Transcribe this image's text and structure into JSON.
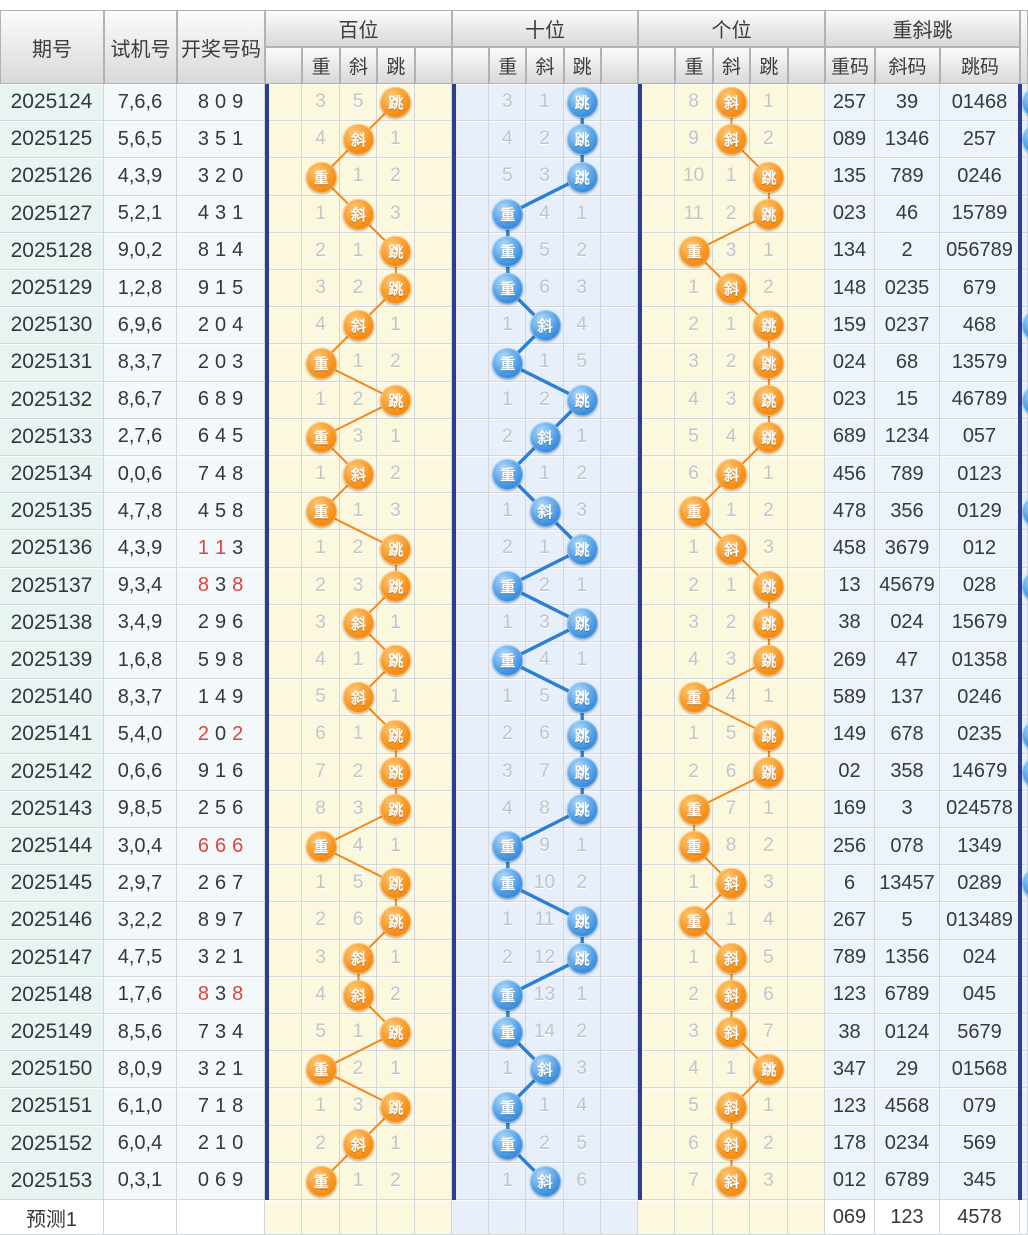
{
  "chart_data": {
    "type": "table",
    "header": {
      "period": "期号",
      "test": "试机号",
      "result": "开奖号码",
      "bai": "百位",
      "shi": "十位",
      "ge": "个位",
      "zxt": "重斜跳",
      "sub": [
        "重",
        "斜",
        "跳"
      ],
      "codes": [
        "重码",
        "斜码",
        "跳码"
      ]
    },
    "chars": [
      "重",
      "斜",
      "跳"
    ],
    "colors": {
      "orange": "#f5871d",
      "blue": "#2b80d5",
      "navy": "#2e3e8f",
      "red": "#e0433c",
      "gray_num": "#c2c4c8"
    },
    "rows": [
      {
        "p": "2025124",
        "t": "7,6,6",
        "r": "809",
        "red": [],
        "bai": [
          2,
          "3",
          "5",
          ""
        ],
        "shi": [
          2,
          "3",
          "1",
          ""
        ],
        "ge": [
          1,
          "8",
          "",
          "1"
        ],
        "codes": [
          "257",
          "39",
          "01468"
        ]
      },
      {
        "p": "2025125",
        "t": "5,6,5",
        "r": "351",
        "red": [],
        "bai": [
          1,
          "4",
          "",
          "1"
        ],
        "shi": [
          2,
          "4",
          "2",
          ""
        ],
        "ge": [
          1,
          "9",
          "",
          "2"
        ],
        "codes": [
          "089",
          "1346",
          "257"
        ]
      },
      {
        "p": "2025126",
        "t": "4,3,9",
        "r": "320",
        "red": [],
        "bai": [
          0,
          "",
          "1",
          "2"
        ],
        "shi": [
          2,
          "5",
          "3",
          ""
        ],
        "ge": [
          2,
          "10",
          "1",
          ""
        ],
        "codes": [
          "135",
          "789",
          "0246"
        ]
      },
      {
        "p": "2025127",
        "t": "5,2,1",
        "r": "431",
        "red": [],
        "bai": [
          1,
          "1",
          "",
          "3"
        ],
        "shi": [
          0,
          "",
          "4",
          "1"
        ],
        "ge": [
          2,
          "11",
          "2",
          ""
        ],
        "codes": [
          "023",
          "46",
          "15789"
        ]
      },
      {
        "p": "2025128",
        "t": "9,0,2",
        "r": "814",
        "red": [],
        "bai": [
          2,
          "2",
          "1",
          ""
        ],
        "shi": [
          0,
          "",
          "5",
          "2"
        ],
        "ge": [
          0,
          "",
          "3",
          "1"
        ],
        "codes": [
          "134",
          "2",
          "056789"
        ]
      },
      {
        "p": "2025129",
        "t": "1,2,8",
        "r": "915",
        "red": [],
        "bai": [
          2,
          "3",
          "2",
          ""
        ],
        "shi": [
          0,
          "",
          "6",
          "3"
        ],
        "ge": [
          1,
          "1",
          "",
          "2"
        ],
        "codes": [
          "148",
          "0235",
          "679"
        ]
      },
      {
        "p": "2025130",
        "t": "6,9,6",
        "r": "204",
        "red": [],
        "bai": [
          1,
          "4",
          "",
          "1"
        ],
        "shi": [
          1,
          "1",
          "",
          "4"
        ],
        "ge": [
          2,
          "2",
          "1",
          ""
        ],
        "codes": [
          "159",
          "0237",
          "468"
        ]
      },
      {
        "p": "2025131",
        "t": "8,3,7",
        "r": "203",
        "red": [],
        "bai": [
          0,
          "",
          "1",
          "2"
        ],
        "shi": [
          0,
          "",
          "1",
          "5"
        ],
        "ge": [
          2,
          "3",
          "2",
          ""
        ],
        "codes": [
          "024",
          "68",
          "13579"
        ]
      },
      {
        "p": "2025132",
        "t": "8,6,7",
        "r": "689",
        "red": [],
        "bai": [
          2,
          "1",
          "2",
          ""
        ],
        "shi": [
          2,
          "1",
          "2",
          ""
        ],
        "ge": [
          2,
          "4",
          "3",
          ""
        ],
        "codes": [
          "023",
          "15",
          "46789"
        ]
      },
      {
        "p": "2025133",
        "t": "2,7,6",
        "r": "645",
        "red": [],
        "bai": [
          0,
          "",
          "3",
          "1"
        ],
        "shi": [
          1,
          "2",
          "",
          "1"
        ],
        "ge": [
          2,
          "5",
          "4",
          ""
        ],
        "codes": [
          "689",
          "1234",
          "057"
        ]
      },
      {
        "p": "2025134",
        "t": "0,0,6",
        "r": "748",
        "red": [],
        "bai": [
          1,
          "1",
          "",
          "2"
        ],
        "shi": [
          0,
          "",
          "1",
          "2"
        ],
        "ge": [
          1,
          "6",
          "",
          "1"
        ],
        "codes": [
          "456",
          "789",
          "0123"
        ]
      },
      {
        "p": "2025135",
        "t": "4,7,8",
        "r": "458",
        "red": [],
        "bai": [
          0,
          "",
          "1",
          "3"
        ],
        "shi": [
          1,
          "1",
          "",
          "3"
        ],
        "ge": [
          0,
          "",
          "1",
          "2"
        ],
        "codes": [
          "478",
          "356",
          "0129"
        ]
      },
      {
        "p": "2025136",
        "t": "4,3,9",
        "r": "113",
        "red": [
          0,
          1
        ],
        "bai": [
          2,
          "1",
          "2",
          ""
        ],
        "shi": [
          2,
          "2",
          "1",
          ""
        ],
        "ge": [
          1,
          "1",
          "",
          "3"
        ],
        "codes": [
          "458",
          "3679",
          "012"
        ]
      },
      {
        "p": "2025137",
        "t": "9,3,4",
        "r": "838",
        "red": [
          0,
          2
        ],
        "bai": [
          2,
          "2",
          "3",
          ""
        ],
        "shi": [
          0,
          "",
          "2",
          "1"
        ],
        "ge": [
          2,
          "2",
          "1",
          ""
        ],
        "codes": [
          "13",
          "45679",
          "028"
        ]
      },
      {
        "p": "2025138",
        "t": "3,4,9",
        "r": "296",
        "red": [],
        "bai": [
          1,
          "3",
          "",
          "1"
        ],
        "shi": [
          2,
          "1",
          "3",
          ""
        ],
        "ge": [
          2,
          "3",
          "2",
          ""
        ],
        "codes": [
          "38",
          "024",
          "15679"
        ]
      },
      {
        "p": "2025139",
        "t": "1,6,8",
        "r": "598",
        "red": [],
        "bai": [
          2,
          "4",
          "1",
          ""
        ],
        "shi": [
          0,
          "",
          "4",
          "1"
        ],
        "ge": [
          2,
          "4",
          "3",
          ""
        ],
        "codes": [
          "269",
          "47",
          "01358"
        ]
      },
      {
        "p": "2025140",
        "t": "8,3,7",
        "r": "149",
        "red": [],
        "bai": [
          1,
          "5",
          "",
          "1"
        ],
        "shi": [
          2,
          "1",
          "5",
          ""
        ],
        "ge": [
          0,
          "",
          "4",
          "1"
        ],
        "codes": [
          "589",
          "137",
          "0246"
        ]
      },
      {
        "p": "2025141",
        "t": "5,4,0",
        "r": "202",
        "red": [
          0,
          2
        ],
        "bai": [
          2,
          "6",
          "1",
          ""
        ],
        "shi": [
          2,
          "2",
          "6",
          ""
        ],
        "ge": [
          2,
          "1",
          "5",
          ""
        ],
        "codes": [
          "149",
          "678",
          "0235"
        ]
      },
      {
        "p": "2025142",
        "t": "0,6,6",
        "r": "916",
        "red": [],
        "bai": [
          2,
          "7",
          "2",
          ""
        ],
        "shi": [
          2,
          "3",
          "7",
          ""
        ],
        "ge": [
          2,
          "2",
          "6",
          ""
        ],
        "codes": [
          "02",
          "358",
          "14679"
        ]
      },
      {
        "p": "2025143",
        "t": "9,8,5",
        "r": "256",
        "red": [],
        "bai": [
          2,
          "8",
          "3",
          ""
        ],
        "shi": [
          2,
          "4",
          "8",
          ""
        ],
        "ge": [
          0,
          "",
          "7",
          "1"
        ],
        "codes": [
          "169",
          "3",
          "024578"
        ]
      },
      {
        "p": "2025144",
        "t": "3,0,4",
        "r": "666",
        "red": [
          0,
          1,
          2
        ],
        "bai": [
          0,
          "",
          "4",
          "1"
        ],
        "shi": [
          0,
          "",
          "9",
          "1"
        ],
        "ge": [
          0,
          "",
          "8",
          "2"
        ],
        "codes": [
          "256",
          "078",
          "1349"
        ]
      },
      {
        "p": "2025145",
        "t": "2,9,7",
        "r": "267",
        "red": [],
        "bai": [
          2,
          "1",
          "5",
          ""
        ],
        "shi": [
          0,
          "",
          "10",
          "2"
        ],
        "ge": [
          1,
          "1",
          "",
          "3"
        ],
        "codes": [
          "6",
          "13457",
          "0289"
        ]
      },
      {
        "p": "2025146",
        "t": "3,2,2",
        "r": "897",
        "red": [],
        "bai": [
          2,
          "2",
          "6",
          ""
        ],
        "shi": [
          2,
          "1",
          "11",
          ""
        ],
        "ge": [
          0,
          "",
          "1",
          "4"
        ],
        "codes": [
          "267",
          "5",
          "013489"
        ]
      },
      {
        "p": "2025147",
        "t": "4,7,5",
        "r": "321",
        "red": [],
        "bai": [
          1,
          "3",
          "",
          "1"
        ],
        "shi": [
          2,
          "2",
          "12",
          ""
        ],
        "ge": [
          1,
          "1",
          "",
          "5"
        ],
        "codes": [
          "789",
          "1356",
          "024"
        ]
      },
      {
        "p": "2025148",
        "t": "1,7,6",
        "r": "838",
        "red": [
          0,
          2
        ],
        "bai": [
          1,
          "4",
          "",
          "2"
        ],
        "shi": [
          0,
          "",
          "13",
          "1"
        ],
        "ge": [
          1,
          "2",
          "",
          "6"
        ],
        "codes": [
          "123",
          "6789",
          "045"
        ]
      },
      {
        "p": "2025149",
        "t": "8,5,6",
        "r": "734",
        "red": [],
        "bai": [
          2,
          "5",
          "1",
          ""
        ],
        "shi": [
          0,
          "",
          "14",
          "2"
        ],
        "ge": [
          1,
          "3",
          "",
          "7"
        ],
        "codes": [
          "38",
          "0124",
          "5679"
        ]
      },
      {
        "p": "2025150",
        "t": "8,0,9",
        "r": "321",
        "red": [],
        "bai": [
          0,
          "",
          "2",
          "1"
        ],
        "shi": [
          1,
          "1",
          "",
          "3"
        ],
        "ge": [
          2,
          "4",
          "1",
          ""
        ],
        "codes": [
          "347",
          "29",
          "01568"
        ]
      },
      {
        "p": "2025151",
        "t": "6,1,0",
        "r": "718",
        "red": [],
        "bai": [
          2,
          "1",
          "3",
          ""
        ],
        "shi": [
          0,
          "",
          "1",
          "4"
        ],
        "ge": [
          1,
          "5",
          "",
          "1"
        ],
        "codes": [
          "123",
          "4568",
          "079"
        ]
      },
      {
        "p": "2025152",
        "t": "6,0,4",
        "r": "210",
        "red": [],
        "bai": [
          1,
          "2",
          "",
          "1"
        ],
        "shi": [
          0,
          "",
          "2",
          "5"
        ],
        "ge": [
          1,
          "6",
          "",
          "2"
        ],
        "codes": [
          "178",
          "0234",
          "569"
        ]
      },
      {
        "p": "2025153",
        "t": "0,3,1",
        "r": "069",
        "red": [],
        "bai": [
          0,
          "",
          "1",
          "2"
        ],
        "shi": [
          1,
          "1",
          "",
          "6"
        ],
        "ge": [
          1,
          "7",
          "",
          "3"
        ],
        "codes": [
          "012",
          "6789",
          "345"
        ]
      }
    ],
    "prediction": {
      "label": "预测1",
      "codes": [
        "069",
        "123",
        "4578"
      ]
    },
    "strip_rows": [
      0,
      1,
      6,
      8,
      11,
      13,
      17,
      18,
      21
    ]
  }
}
